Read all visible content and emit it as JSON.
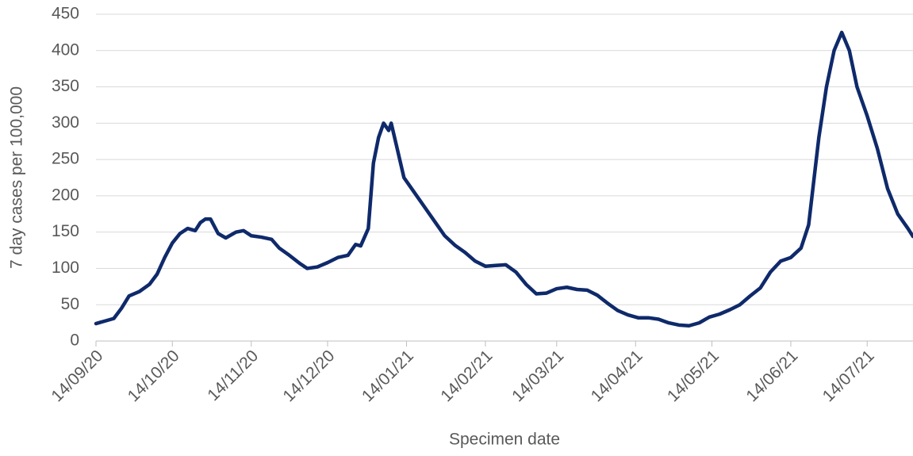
{
  "chart_data": {
    "type": "line",
    "x_label": "Specimen date",
    "y_label": "7 day cases per 100,000",
    "x": [
      "2020-09-14",
      "2020-09-18",
      "2020-09-21",
      "2020-09-24",
      "2020-09-27",
      "2020-10-01",
      "2020-10-05",
      "2020-10-08",
      "2020-10-11",
      "2020-10-14",
      "2020-10-17",
      "2020-10-20",
      "2020-10-23",
      "2020-10-25",
      "2020-10-27",
      "2020-10-29",
      "2020-11-01",
      "2020-11-04",
      "2020-11-08",
      "2020-11-11",
      "2020-11-14",
      "2020-11-18",
      "2020-11-22",
      "2020-11-25",
      "2020-11-29",
      "2020-12-03",
      "2020-12-06",
      "2020-12-10",
      "2020-12-14",
      "2020-12-18",
      "2020-12-22",
      "2020-12-25",
      "2020-12-27",
      "2020-12-30",
      "2021-01-01",
      "2021-01-03",
      "2021-01-05",
      "2021-01-07",
      "2021-01-08",
      "2021-01-10",
      "2021-01-13",
      "2021-01-17",
      "2021-01-21",
      "2021-01-25",
      "2021-01-29",
      "2021-02-02",
      "2021-02-06",
      "2021-02-10",
      "2021-02-14",
      "2021-02-18",
      "2021-02-22",
      "2021-02-26",
      "2021-03-02",
      "2021-03-06",
      "2021-03-10",
      "2021-03-14",
      "2021-03-18",
      "2021-03-22",
      "2021-03-26",
      "2021-03-30",
      "2021-04-03",
      "2021-04-07",
      "2021-04-11",
      "2021-04-15",
      "2021-04-19",
      "2021-04-23",
      "2021-04-27",
      "2021-05-01",
      "2021-05-05",
      "2021-05-09",
      "2021-05-13",
      "2021-05-17",
      "2021-05-21",
      "2021-05-25",
      "2021-05-29",
      "2021-06-02",
      "2021-06-06",
      "2021-06-10",
      "2021-06-14",
      "2021-06-18",
      "2021-06-21",
      "2021-06-25",
      "2021-06-28",
      "2021-07-01",
      "2021-07-04",
      "2021-07-07",
      "2021-07-10",
      "2021-07-14",
      "2021-07-18",
      "2021-07-22",
      "2021-07-26",
      "2021-07-30",
      "2021-08-01"
    ],
    "series": [
      {
        "name": "7 day cases per 100,000",
        "color": "#0f2a6b",
        "values": [
          24,
          28,
          31,
          45,
          62,
          68,
          78,
          92,
          115,
          135,
          148,
          155,
          152,
          163,
          168,
          168,
          148,
          142,
          150,
          152,
          145,
          143,
          140,
          128,
          118,
          107,
          100,
          102,
          108,
          115,
          118,
          133,
          131,
          155,
          245,
          280,
          300,
          290,
          300,
          270,
          225,
          205,
          185,
          165,
          145,
          132,
          122,
          110,
          103,
          104,
          105,
          95,
          78,
          65,
          66,
          72,
          74,
          71,
          70,
          63,
          52,
          42,
          36,
          32,
          32,
          30,
          25,
          22,
          21,
          25,
          33,
          37,
          43,
          50,
          62,
          73,
          95,
          110,
          115,
          128,
          160,
          280,
          350,
          400,
          425,
          400,
          350,
          310,
          265,
          210,
          175,
          155,
          144
        ]
      }
    ],
    "xlim": [
      "2020-09-14",
      "2021-08-01"
    ],
    "xticks": [
      {
        "value": "2020-09-14",
        "label": "14/09/20"
      },
      {
        "value": "2020-10-14",
        "label": "14/10/20"
      },
      {
        "value": "2020-11-14",
        "label": "14/11/20"
      },
      {
        "value": "2020-12-14",
        "label": "14/12/20"
      },
      {
        "value": "2021-01-14",
        "label": "14/01/21"
      },
      {
        "value": "2021-02-14",
        "label": "14/02/21"
      },
      {
        "value": "2021-03-14",
        "label": "14/03/21"
      },
      {
        "value": "2021-04-14",
        "label": "14/04/21"
      },
      {
        "value": "2021-05-14",
        "label": "14/05/21"
      },
      {
        "value": "2021-06-14",
        "label": "14/06/21"
      },
      {
        "value": "2021-07-14",
        "label": "14/07/21"
      }
    ],
    "ylim": [
      0,
      450
    ],
    "yticks": [
      0,
      50,
      100,
      150,
      200,
      250,
      300,
      350,
      400,
      450
    ],
    "grid": true
  }
}
